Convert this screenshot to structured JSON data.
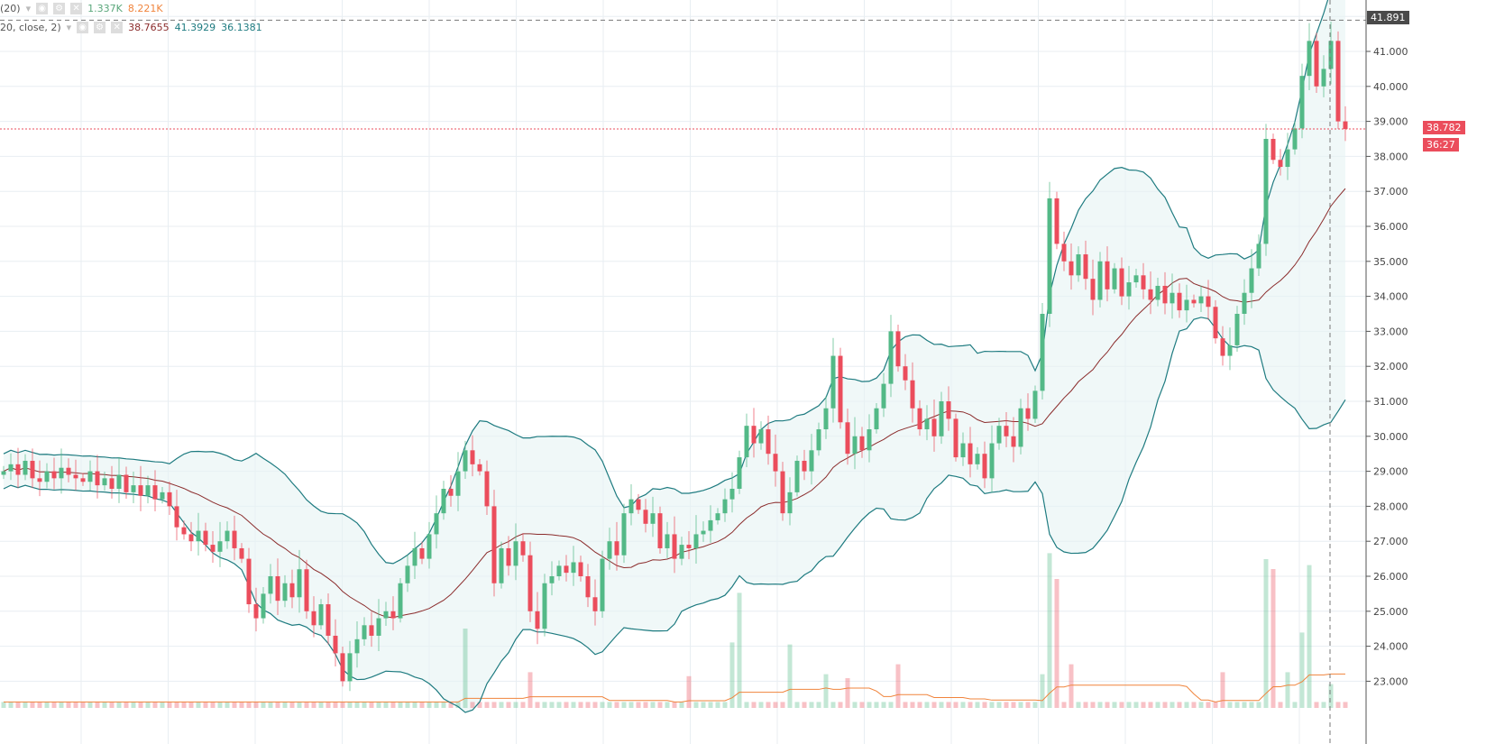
{
  "legend": {
    "volume": {
      "name": "(20)",
      "ma": "1.337K",
      "ma2": "8.221K",
      "ma_color": "#5aa77b",
      "ma2_color": "#f0843c"
    },
    "bb": {
      "name": "20, close, 2)",
      "basis": "38.7655",
      "upper": "41.3929",
      "lower": "36.1381",
      "basis_color": "#8b2c2c",
      "band_color": "#1e7b80"
    }
  },
  "price_labels": {
    "crosshair": "41.891",
    "last": "38.782",
    "countdown": "36:27"
  },
  "chart_data": {
    "type": "candlestick",
    "yaxis_ticks": [
      "23.000",
      "24.000",
      "25.000",
      "26.000",
      "27.000",
      "28.000",
      "29.000",
      "30.000",
      "31.000",
      "32.000",
      "33.000",
      "34.000",
      "35.000",
      "36.000",
      "37.000",
      "38.000",
      "39.000",
      "40.000",
      "41.000"
    ],
    "ylim": [
      22.3,
      42.3
    ],
    "grid": true,
    "indicator": "Bollinger Bands (20, close, 2)",
    "colors": {
      "up": "#53b987",
      "down": "#eb4d5c",
      "band_fill": "#e6f3f3"
    },
    "close": [
      29.0,
      29.2,
      28.9,
      29.3,
      28.8,
      28.7,
      29.0,
      28.8,
      29.1,
      28.9,
      28.8,
      28.7,
      29.0,
      28.6,
      28.8,
      28.5,
      28.9,
      28.4,
      28.6,
      28.3,
      28.6,
      28.2,
      28.4,
      28.0,
      27.4,
      27.2,
      27.0,
      27.3,
      26.9,
      26.7,
      27.0,
      27.3,
      26.8,
      26.5,
      25.2,
      24.8,
      25.5,
      26.0,
      25.3,
      25.8,
      25.4,
      26.2,
      25.0,
      24.6,
      25.2,
      24.3,
      23.8,
      23.0,
      23.8,
      24.2,
      24.6,
      24.3,
      24.8,
      25.0,
      24.8,
      25.8,
      26.3,
      26.8,
      26.5,
      27.2,
      27.8,
      28.5,
      28.3,
      29.0,
      29.6,
      29.2,
      29.0,
      28.0,
      25.8,
      26.8,
      26.3,
      27.0,
      26.6,
      25.0,
      24.5,
      25.8,
      26.0,
      26.3,
      26.1,
      26.4,
      26.0,
      25.4,
      25.0,
      26.5,
      27.0,
      26.6,
      27.8,
      28.2,
      27.9,
      27.5,
      27.8,
      26.8,
      27.2,
      26.5,
      26.9,
      26.8,
      27.2,
      27.3,
      27.6,
      27.8,
      28.2,
      28.5,
      29.4,
      30.3,
      29.8,
      30.2,
      29.5,
      29.0,
      27.8,
      28.4,
      29.3,
      29.0,
      29.6,
      30.2,
      30.8,
      32.3,
      30.4,
      29.5,
      30.0,
      29.6,
      30.2,
      30.8,
      31.5,
      33.0,
      32.0,
      31.6,
      30.8,
      30.2,
      30.5,
      30.0,
      31.0,
      30.5,
      29.4,
      29.8,
      29.2,
      29.5,
      28.8,
      29.8,
      30.3,
      30.0,
      29.7,
      30.8,
      30.5,
      31.3,
      33.5,
      36.8,
      35.5,
      35.0,
      34.6,
      35.2,
      34.5,
      33.9,
      35.0,
      34.2,
      34.8,
      34.0,
      34.4,
      34.6,
      34.2,
      33.9,
      34.3,
      33.8,
      34.1,
      33.6,
      33.9,
      33.8,
      34.0,
      33.7,
      32.8,
      32.3,
      32.6,
      33.5,
      34.1,
      34.8,
      35.5,
      38.5,
      37.9,
      37.7,
      38.2,
      38.8,
      40.3,
      41.3,
      40.0,
      40.5,
      41.3,
      39.0,
      38.782
    ],
    "volume_k": [
      [
        64,
        4.0
      ],
      [
        73,
        1.8
      ],
      [
        95,
        1.6
      ],
      [
        101,
        3.3
      ],
      [
        102,
        5.8
      ],
      [
        109,
        3.2
      ],
      [
        114,
        1.7
      ],
      [
        117,
        1.5
      ],
      [
        124,
        2.2
      ],
      [
        144,
        1.7
      ],
      [
        145,
        7.8
      ],
      [
        146,
        6.5
      ],
      [
        148,
        2.2
      ],
      [
        169,
        1.8
      ],
      [
        175,
        7.5
      ],
      [
        176,
        7.0
      ],
      [
        178,
        1.8
      ],
      [
        180,
        3.8
      ],
      [
        181,
        7.2
      ],
      [
        184,
        1.2
      ]
    ]
  }
}
